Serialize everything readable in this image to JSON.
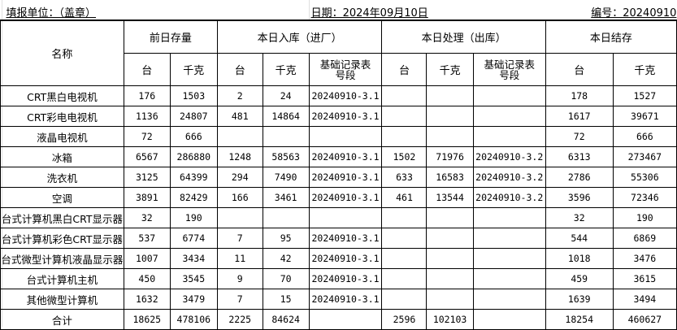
{
  "header": {
    "unit_label": "填报单位：（盖章）",
    "date_label": "日期：2024年09月10日",
    "number_label": "编号：20240910"
  },
  "columns": {
    "name": "名称",
    "groups": [
      "前日存量",
      "本日入库（进厂）",
      "本日处理（出库）",
      "本日结存"
    ],
    "units": [
      "台",
      "千克",
      "台",
      "千克",
      "基础记录表号段",
      "台",
      "千克",
      "基础记录表号段",
      "台",
      "千克"
    ]
  },
  "rows": [
    [
      "CRT黑白电视机",
      "176",
      "1503",
      "2",
      "24",
      "20240910-3.1",
      "",
      "",
      "",
      "178",
      "1527"
    ],
    [
      "CRT彩电电视机",
      "1136",
      "24807",
      "481",
      "14864",
      "20240910-3.1",
      "",
      "",
      "",
      "1617",
      "39671"
    ],
    [
      "液晶电视机",
      "72",
      "666",
      "",
      "",
      "",
      "",
      "",
      "",
      "72",
      "666"
    ],
    [
      "冰箱",
      "6567",
      "286880",
      "1248",
      "58563",
      "20240910-3.1",
      "1502",
      "71976",
      "20240910-3.2",
      "6313",
      "273467"
    ],
    [
      "洗衣机",
      "3125",
      "64399",
      "294",
      "7490",
      "20240910-3.1",
      "633",
      "16583",
      "20240910-3.2",
      "2786",
      "55306"
    ],
    [
      "空调",
      "3891",
      "82429",
      "166",
      "3461",
      "20240910-3.1",
      "461",
      "13544",
      "20240910-3.2",
      "3596",
      "72346"
    ],
    [
      "台式计算机黑白CRT显示器",
      "32",
      "190",
      "",
      "",
      "",
      "",
      "",
      "",
      "32",
      "190"
    ],
    [
      "台式计算机彩色CRT显示器",
      "537",
      "6774",
      "7",
      "95",
      "20240910-3.1",
      "",
      "",
      "",
      "544",
      "6869"
    ],
    [
      "台式微型计算机液晶显示器",
      "1007",
      "3434",
      "11",
      "42",
      "20240910-3.1",
      "",
      "",
      "",
      "1018",
      "3476"
    ],
    [
      "台式计算机主机",
      "450",
      "3545",
      "9",
      "70",
      "20240910-3.1",
      "",
      "",
      "",
      "459",
      "3615"
    ],
    [
      "其他微型计算机",
      "1632",
      "3479",
      "7",
      "15",
      "20240910-3.1",
      "",
      "",
      "",
      "1639",
      "3494"
    ],
    [
      "合计",
      "18625",
      "478106",
      "2225",
      "84624",
      "",
      "2596",
      "102103",
      "",
      "18254",
      "460627"
    ]
  ]
}
